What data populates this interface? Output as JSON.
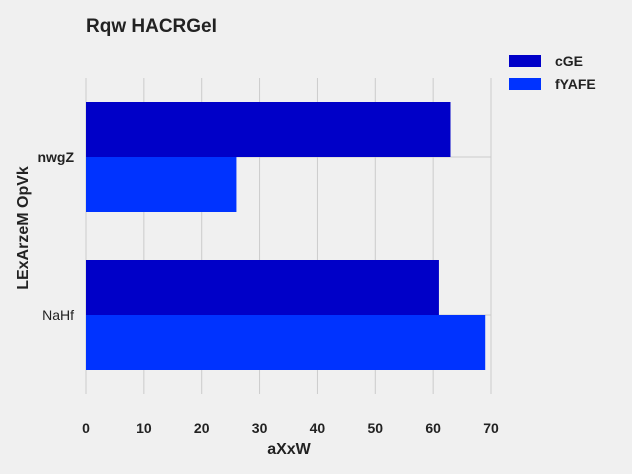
{
  "chart_data": {
    "type": "bar",
    "orientation": "horizontal",
    "title": "Rqw HACRGeI",
    "xlabel": "aXxW",
    "ylabel": "LExArzeM OpVk",
    "categories": [
      "NaHf",
      "nwgZ"
    ],
    "series": [
      {
        "name": "cGE",
        "values": [
          61,
          63
        ],
        "color": "#0000c8"
      },
      {
        "name": "fYAFE",
        "values": [
          69,
          26
        ],
        "color": "#0033ff"
      }
    ],
    "xlim": [
      0,
      70
    ],
    "xticks": [
      0,
      10,
      20,
      30,
      40,
      50,
      60,
      70
    ],
    "grid": true,
    "legend_position": "top-right"
  }
}
